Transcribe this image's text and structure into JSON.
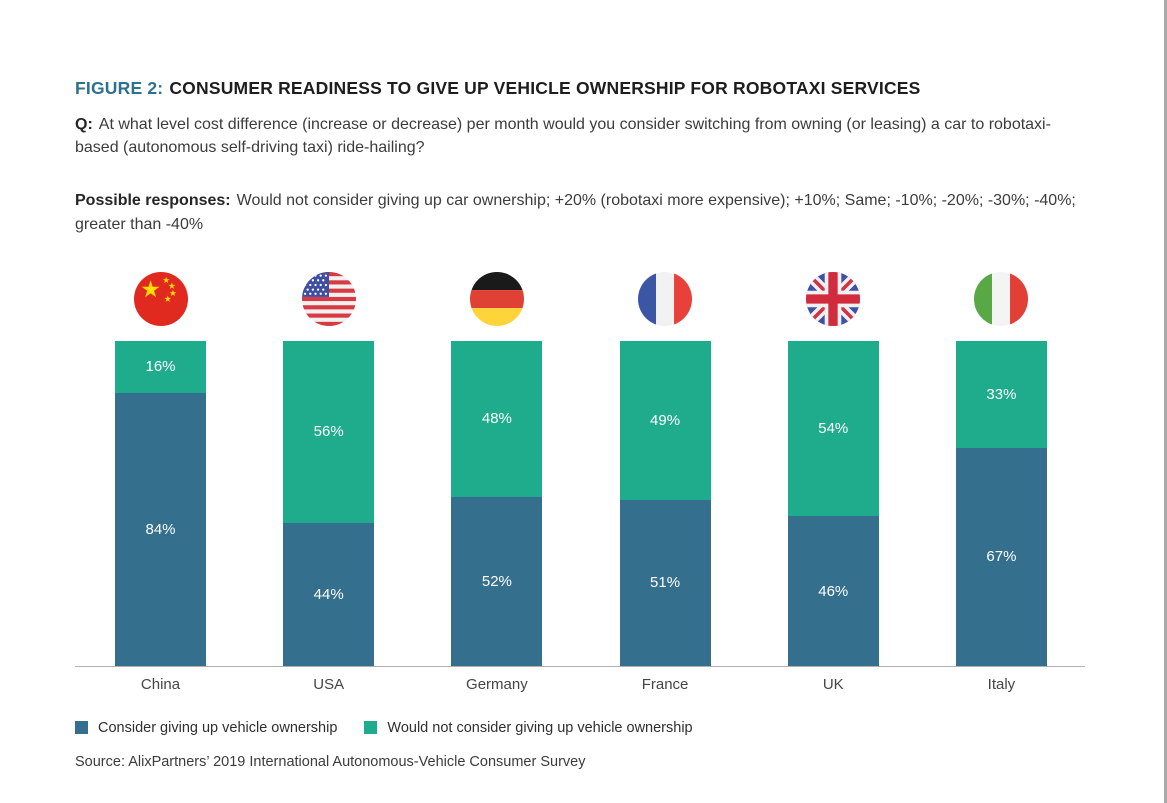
{
  "figure": {
    "label": "FIGURE 2:",
    "title": "CONSUMER READINESS TO GIVE UP VEHICLE OWNERSHIP FOR ROBOTAXI SERVICES",
    "question_label": "Q:",
    "question": "At what level cost difference (increase or decrease) per month would you consider switching from owning (or leasing) a car to robotaxi-based (autonomous self-driving taxi) ride-hailing?",
    "responses_label": "Possible responses:",
    "responses": "Would not consider giving up car ownership; +20% (robotaxi more expensive); +10%; Same; -10%; -20%; -30%; -40%; greater than -40%"
  },
  "chart_data": {
    "type": "bar",
    "stacked": true,
    "categories": [
      "China",
      "USA",
      "Germany",
      "France",
      "UK",
      "Italy"
    ],
    "flags": [
      "china-flag-icon",
      "usa-flag-icon",
      "germany-flag-icon",
      "france-flag-icon",
      "uk-flag-icon",
      "italy-flag-icon"
    ],
    "series": [
      {
        "name": "Consider giving up vehicle ownership",
        "color": "#356f8e",
        "values": [
          84,
          44,
          52,
          51,
          46,
          67
        ]
      },
      {
        "name": "Would not consider giving up vehicle ownership",
        "color": "#1fac8d",
        "values": [
          16,
          56,
          48,
          49,
          54,
          33
        ]
      }
    ],
    "value_suffix": "%",
    "ylim": [
      0,
      100
    ],
    "grid": false,
    "legend_position": "bottom"
  },
  "source": "Source: AlixPartners’ 2019 International Autonomous-Vehicle Consumer Survey",
  "colors": {
    "accent": "#2d7190",
    "consider": "#356f8e",
    "would_not_consider": "#1fac8d",
    "axis": "#b0b0b0"
  }
}
